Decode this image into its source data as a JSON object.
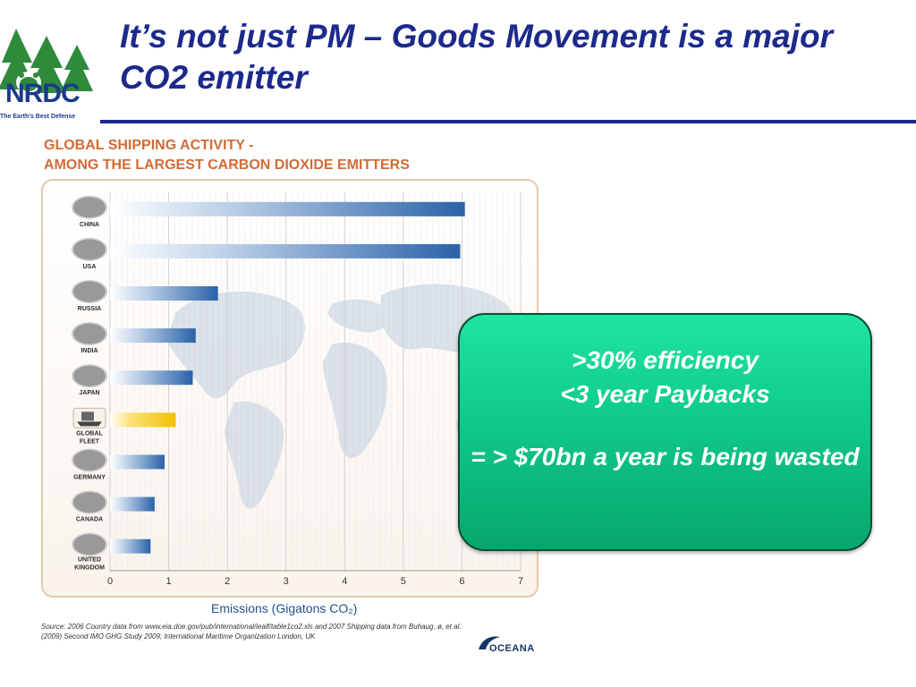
{
  "slide": {
    "title": "It’s not just PM – Goods Movement is a major CO2 emitter"
  },
  "logo": {
    "name": "NRDC",
    "tagline": "The Earth’s Best Defense",
    "icon": "tree-bear-icon"
  },
  "chart_data": {
    "type": "bar",
    "orientation": "horizontal",
    "title": [
      "GLOBAL SHIPPING ACTIVITY -",
      "AMONG THE LARGEST CARBON DIOXIDE EMITTERS"
    ],
    "xlabel": "Emissions (Gigatons CO₂)",
    "xlim": [
      0,
      7
    ],
    "xticks": [
      0,
      1,
      2,
      3,
      4,
      5,
      6,
      7
    ],
    "grid": true,
    "categories": [
      {
        "label": [
          "CHINA"
        ],
        "value": 6.05,
        "flag": "china-flag-icon"
      },
      {
        "label": [
          "USA"
        ],
        "value": 5.97,
        "flag": "usa-flag-icon"
      },
      {
        "label": [
          "RUSSIA"
        ],
        "value": 1.84,
        "flag": "russia-flag-icon"
      },
      {
        "label": [
          "INDIA"
        ],
        "value": 1.46,
        "flag": "india-flag-icon"
      },
      {
        "label": [
          "JAPAN"
        ],
        "value": 1.41,
        "flag": "japan-flag-icon"
      },
      {
        "label": [
          "GLOBAL",
          "FLEET"
        ],
        "value": 1.12,
        "flag": "ship-icon",
        "highlight": true
      },
      {
        "label": [
          "GERMANY"
        ],
        "value": 0.93,
        "flag": "germany-flag-icon"
      },
      {
        "label": [
          "CANADA"
        ],
        "value": 0.76,
        "flag": "canada-flag-icon"
      },
      {
        "label": [
          "UNITED",
          "KINGDOM"
        ],
        "value": 0.69,
        "flag": "uk-flag-icon"
      }
    ],
    "colors": {
      "bar": "#2a62a8",
      "highlight": "#f2c100",
      "panel_border": "#e4c9b0",
      "heading": "#d26b36",
      "map": "#ccd7e4"
    },
    "source": "Source: 2006 Country data from www.eia.doe.gov/pub/international/iealf/table1co2.xls and 2007 Shipping data from Buhaug, ø, et al. (2009) Second IMO GHG Study 2009; International Maritime Organization London, UK",
    "brand": "OCEANA"
  },
  "callout": {
    "line1": ">30% efficiency",
    "line2": "<3 year Paybacks",
    "line3": "= > $70bn a year is being wasted"
  }
}
